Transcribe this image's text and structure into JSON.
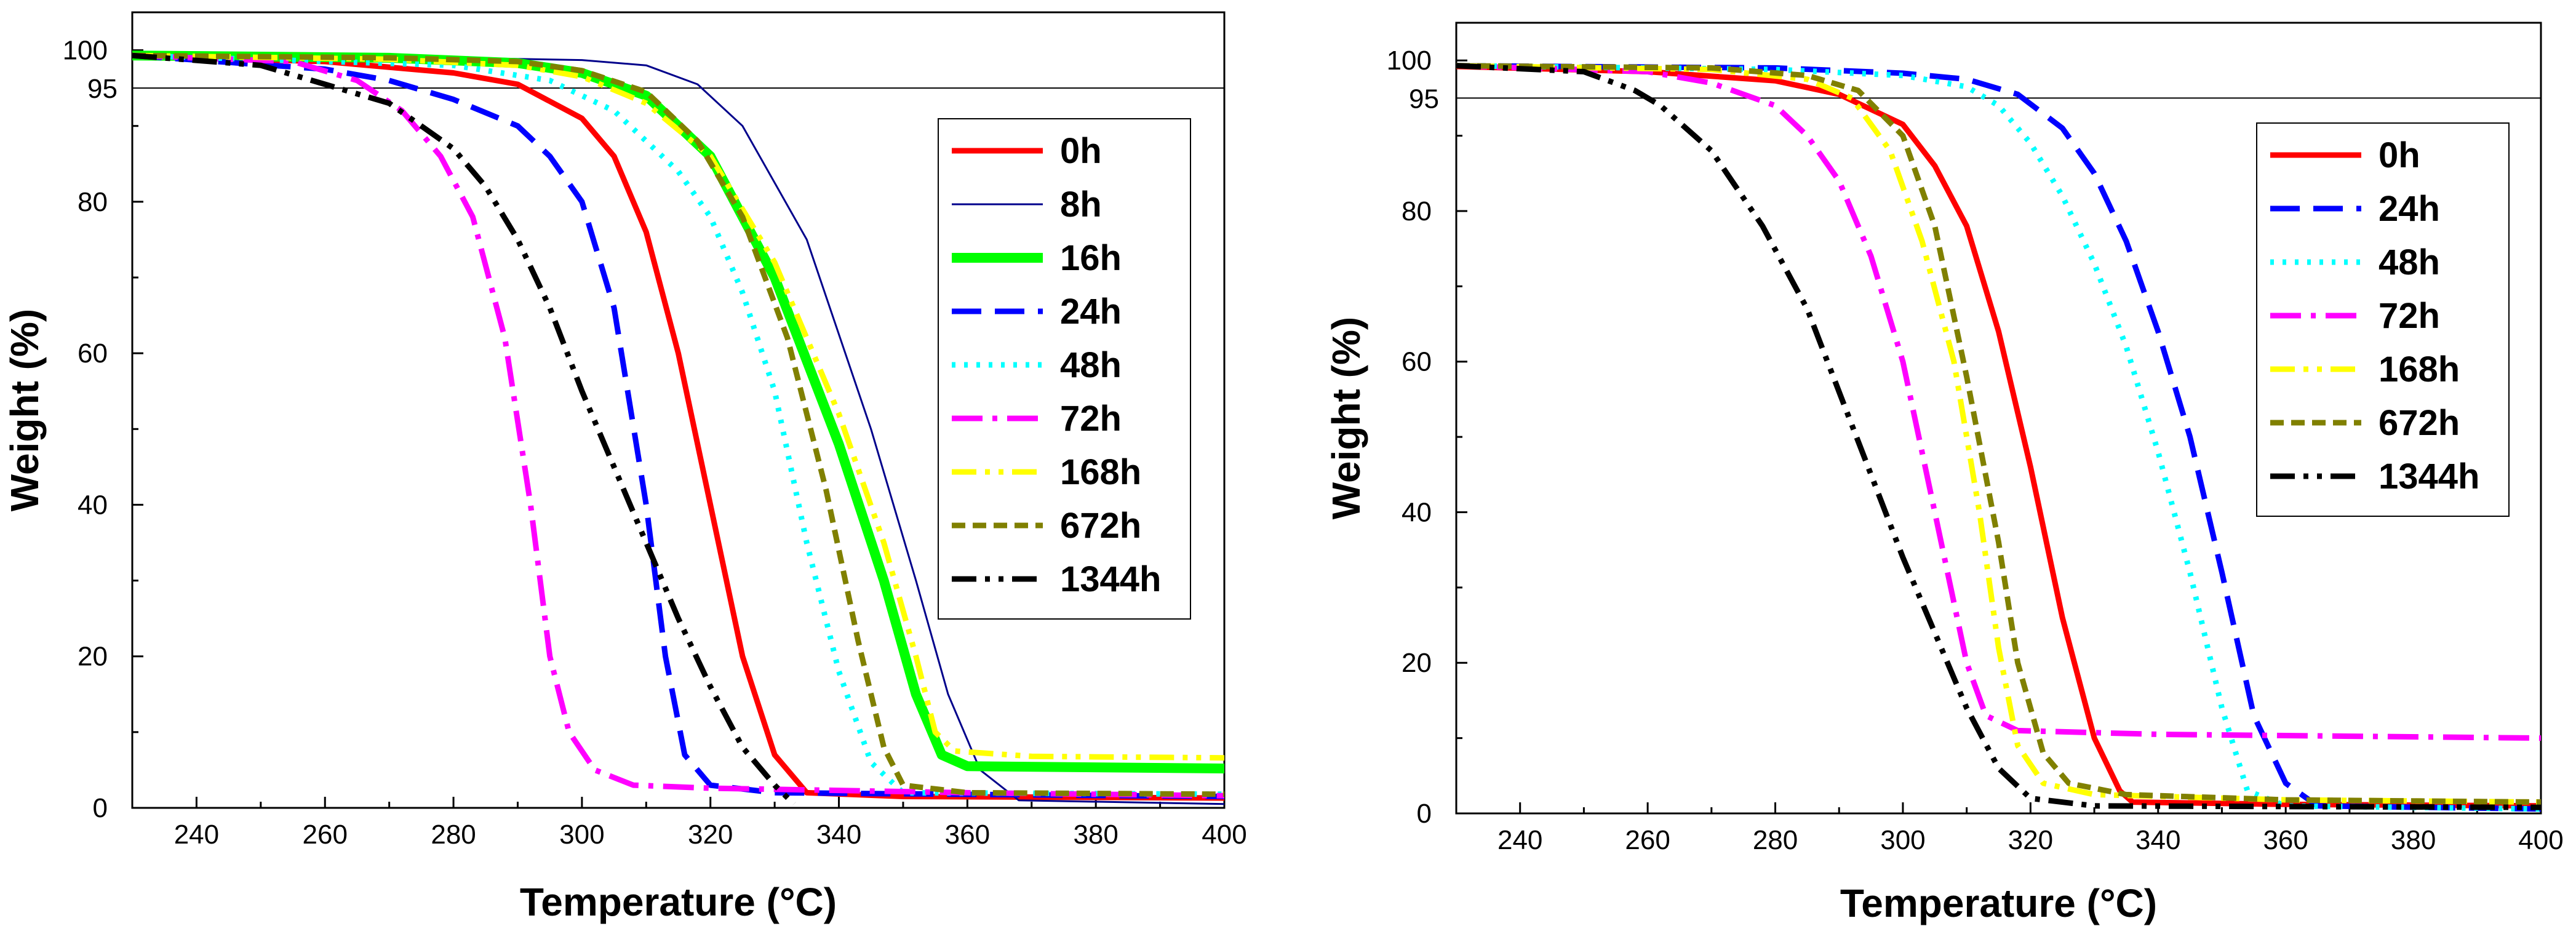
{
  "chart_data": [
    {
      "type": "line",
      "title": "",
      "xlabel": "Temperature (°C)",
      "ylabel": "Weight (%)",
      "xlim": [
        230,
        400
      ],
      "ylim": [
        0,
        105
      ],
      "xticks": [
        240,
        260,
        280,
        300,
        320,
        340,
        360,
        380,
        400
      ],
      "yticks": [
        0,
        20,
        40,
        60,
        80,
        100
      ],
      "reference_line": {
        "y": 95,
        "label": "95"
      },
      "grid": false,
      "legend_position": "top-right",
      "series": [
        {
          "name": "0h",
          "color": "#ff0000",
          "style": "solid",
          "width": "thick",
          "points": [
            [
              230,
              99.2
            ],
            [
              260,
              98.5
            ],
            [
              280,
              97
            ],
            [
              290,
              95.5
            ],
            [
              300,
              91
            ],
            [
              305,
              86
            ],
            [
              310,
              76
            ],
            [
              315,
              60
            ],
            [
              320,
              40
            ],
            [
              325,
              20
            ],
            [
              330,
              7
            ],
            [
              335,
              2
            ],
            [
              350,
              1.5
            ],
            [
              400,
              1.3
            ]
          ]
        },
        {
          "name": "8h",
          "color": "#00008b",
          "style": "solid",
          "width": "thin",
          "points": [
            [
              230,
              99.3
            ],
            [
              280,
              99
            ],
            [
              300,
              98.7
            ],
            [
              310,
              98
            ],
            [
              318,
              95.5
            ],
            [
              325,
              90
            ],
            [
              335,
              75
            ],
            [
              345,
              50
            ],
            [
              352,
              30
            ],
            [
              357,
              15
            ],
            [
              362,
              5
            ],
            [
              368,
              1
            ],
            [
              400,
              0.5
            ]
          ]
        },
        {
          "name": "16h",
          "color": "#00ff00",
          "style": "solid",
          "width": "very-thick",
          "points": [
            [
              230,
              99.3
            ],
            [
              270,
              99
            ],
            [
              290,
              98.3
            ],
            [
              300,
              97
            ],
            [
              310,
              94
            ],
            [
              320,
              86
            ],
            [
              330,
              70
            ],
            [
              340,
              48
            ],
            [
              347,
              30
            ],
            [
              352,
              15
            ],
            [
              356,
              7
            ],
            [
              360,
              5.5
            ],
            [
              400,
              5.2
            ]
          ]
        },
        {
          "name": "24h",
          "color": "#0000ff",
          "style": "dashed",
          "width": "thick",
          "points": [
            [
              230,
              99.3
            ],
            [
              260,
              97.5
            ],
            [
              270,
              96
            ],
            [
              280,
              93.5
            ],
            [
              290,
              90
            ],
            [
              295,
              86
            ],
            [
              300,
              80
            ],
            [
              305,
              66
            ],
            [
              310,
              40
            ],
            [
              313,
              20
            ],
            [
              316,
              7
            ],
            [
              320,
              3
            ],
            [
              330,
              2
            ],
            [
              400,
              1.5
            ]
          ]
        },
        {
          "name": "48h",
          "color": "#00ffff",
          "style": "dotted",
          "width": "thick",
          "points": [
            [
              230,
              99.3
            ],
            [
              280,
              98
            ],
            [
              295,
              96
            ],
            [
              305,
              92
            ],
            [
              315,
              84
            ],
            [
              320,
              78
            ],
            [
              325,
              68
            ],
            [
              330,
              55
            ],
            [
              335,
              35
            ],
            [
              340,
              18
            ],
            [
              345,
              6
            ],
            [
              350,
              2
            ],
            [
              400,
              1.8
            ]
          ]
        },
        {
          "name": "72h",
          "color": "#ff00ff",
          "style": "dash-dot",
          "width": "thick",
          "points": [
            [
              230,
              99.3
            ],
            [
              255,
              98.5
            ],
            [
              265,
              96
            ],
            [
              272,
              92
            ],
            [
              278,
              86
            ],
            [
              283,
              78
            ],
            [
              288,
              62
            ],
            [
              292,
              40
            ],
            [
              295,
              20
            ],
            [
              298,
              10
            ],
            [
              302,
              5
            ],
            [
              308,
              3
            ],
            [
              320,
              2.6
            ],
            [
              360,
              2
            ],
            [
              400,
              1.6
            ]
          ]
        },
        {
          "name": "168h",
          "color": "#ffff00",
          "style": "dash-dot-dot",
          "width": "thick",
          "points": [
            [
              230,
              99.3
            ],
            [
              270,
              98.8
            ],
            [
              290,
              98
            ],
            [
              300,
              96.5
            ],
            [
              310,
              93
            ],
            [
              320,
              86
            ],
            [
              330,
              72
            ],
            [
              340,
              52
            ],
            [
              347,
              35
            ],
            [
              352,
              20
            ],
            [
              355,
              10
            ],
            [
              358,
              7.5
            ],
            [
              370,
              6.8
            ],
            [
              400,
              6.6
            ]
          ]
        },
        {
          "name": "672h",
          "color": "#808000",
          "style": "short-dash",
          "width": "thick",
          "points": [
            [
              230,
              99.3
            ],
            [
              270,
              99
            ],
            [
              290,
              98.5
            ],
            [
              300,
              97.3
            ],
            [
              310,
              94.5
            ],
            [
              318,
              88
            ],
            [
              325,
              78
            ],
            [
              332,
              62
            ],
            [
              338,
              42
            ],
            [
              343,
              22
            ],
            [
              347,
              8
            ],
            [
              350,
              3
            ],
            [
              360,
              2
            ],
            [
              400,
              1.8
            ]
          ]
        },
        {
          "name": "1344h",
          "color": "#000000",
          "style": "dash-dot-dot",
          "width": "thick",
          "points": [
            [
              230,
              99.3
            ],
            [
              250,
              98
            ],
            [
              260,
              95.5
            ],
            [
              270,
              93
            ],
            [
              280,
              87
            ],
            [
              285,
              82
            ],
            [
              290,
              75
            ],
            [
              295,
              66
            ],
            [
              300,
              55
            ],
            [
              305,
              45
            ],
            [
              310,
              35
            ],
            [
              315,
              25
            ],
            [
              320,
              16
            ],
            [
              325,
              8
            ],
            [
              330,
              3
            ],
            [
              333,
              0.5
            ]
          ]
        }
      ]
    },
    {
      "type": "line",
      "title": "",
      "xlabel": "Temperature (°C)",
      "ylabel": "Weight (%)",
      "xlim": [
        230,
        400
      ],
      "ylim": [
        0,
        105
      ],
      "xticks": [
        240,
        260,
        280,
        300,
        320,
        340,
        360,
        380,
        400
      ],
      "yticks": [
        0,
        20,
        40,
        60,
        80,
        100
      ],
      "reference_line": {
        "y": 95,
        "label": "95"
      },
      "grid": false,
      "legend_position": "top-right",
      "series": [
        {
          "name": "0h",
          "color": "#ff0000",
          "style": "solid",
          "width": "thick",
          "points": [
            [
              230,
              99.2
            ],
            [
              260,
              98.5
            ],
            [
              280,
              97.3
            ],
            [
              290,
              95.5
            ],
            [
              300,
              91.5
            ],
            [
              305,
              86
            ],
            [
              310,
              78
            ],
            [
              315,
              64
            ],
            [
              320,
              46
            ],
            [
              325,
              26
            ],
            [
              330,
              10
            ],
            [
              334,
              3
            ],
            [
              336,
              1.5
            ],
            [
              360,
              1.2
            ],
            [
              400,
              1
            ]
          ]
        },
        {
          "name": "24h",
          "color": "#0000ff",
          "style": "dashed",
          "width": "thick",
          "points": [
            [
              230,
              99.3
            ],
            [
              280,
              99
            ],
            [
              300,
              98.3
            ],
            [
              310,
              97.5
            ],
            [
              318,
              95.5
            ],
            [
              325,
              91
            ],
            [
              330,
              85
            ],
            [
              335,
              76
            ],
            [
              340,
              64
            ],
            [
              345,
              50
            ],
            [
              350,
              32
            ],
            [
              355,
              13
            ],
            [
              360,
              4
            ],
            [
              365,
              1
            ],
            [
              400,
              0.6
            ]
          ]
        },
        {
          "name": "48h",
          "color": "#00ffff",
          "style": "dotted",
          "width": "thick",
          "points": [
            [
              230,
              99.3
            ],
            [
              280,
              98.8
            ],
            [
              300,
              98
            ],
            [
              310,
              96.5
            ],
            [
              315,
              94
            ],
            [
              320,
              89
            ],
            [
              325,
              82
            ],
            [
              330,
              73
            ],
            [
              335,
              62
            ],
            [
              340,
              48
            ],
            [
              345,
              32
            ],
            [
              350,
              14
            ],
            [
              354,
              3
            ],
            [
              360,
              1
            ],
            [
              400,
              0.6
            ]
          ]
        },
        {
          "name": "72h",
          "color": "#ff00ff",
          "style": "dash-dot",
          "width": "thick",
          "points": [
            [
              230,
              99.3
            ],
            [
              260,
              98.5
            ],
            [
              270,
              97
            ],
            [
              280,
              94
            ],
            [
              285,
              90
            ],
            [
              290,
              84
            ],
            [
              295,
              74
            ],
            [
              300,
              60
            ],
            [
              305,
              40
            ],
            [
              310,
              20
            ],
            [
              313,
              13
            ],
            [
              318,
              11
            ],
            [
              340,
              10.5
            ],
            [
              400,
              10
            ]
          ]
        },
        {
          "name": "168h",
          "color": "#ffff00",
          "style": "dash-dot-dot",
          "width": "thick",
          "points": [
            [
              230,
              99.3
            ],
            [
              270,
              98.8
            ],
            [
              285,
              97.5
            ],
            [
              292,
              95
            ],
            [
              298,
              88
            ],
            [
              303,
              76
            ],
            [
              308,
              60
            ],
            [
              312,
              40
            ],
            [
              315,
              22
            ],
            [
              318,
              9
            ],
            [
              322,
              4
            ],
            [
              330,
              2.5
            ],
            [
              360,
              1.8
            ],
            [
              400,
              1.5
            ]
          ]
        },
        {
          "name": "672h",
          "color": "#808000",
          "style": "short-dash",
          "width": "thick",
          "points": [
            [
              230,
              99.3
            ],
            [
              270,
              99
            ],
            [
              285,
              98
            ],
            [
              293,
              96
            ],
            [
              300,
              90
            ],
            [
              305,
              78
            ],
            [
              310,
              58
            ],
            [
              315,
              36
            ],
            [
              318,
              20
            ],
            [
              322,
              8
            ],
            [
              326,
              4
            ],
            [
              335,
              2.5
            ],
            [
              360,
              1.8
            ],
            [
              400,
              1.5
            ]
          ]
        },
        {
          "name": "1344h",
          "color": "#000000",
          "style": "dash-dot-dot",
          "width": "thick",
          "points": [
            [
              230,
              99.3
            ],
            [
              250,
              98.5
            ],
            [
              258,
              96
            ],
            [
              262,
              94
            ],
            [
              270,
              88
            ],
            [
              278,
              78
            ],
            [
              285,
              67
            ],
            [
              290,
              56
            ],
            [
              295,
              45
            ],
            [
              300,
              34
            ],
            [
              305,
              24
            ],
            [
              310,
              14
            ],
            [
              315,
              6
            ],
            [
              320,
              2
            ],
            [
              330,
              1
            ],
            [
              400,
              0.8
            ]
          ]
        }
      ]
    }
  ]
}
